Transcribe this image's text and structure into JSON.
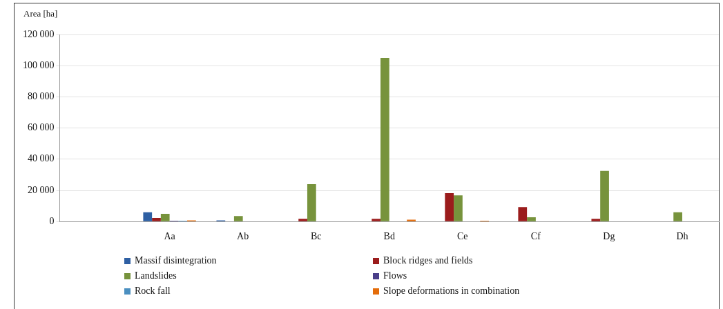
{
  "chart_data": {
    "type": "bar",
    "ylabel": "Area [ha]",
    "categories": [
      null,
      "Aa",
      "Ab",
      "Bc",
      "Bd",
      "Ce",
      "Cf",
      "Dg",
      "Dh"
    ],
    "series": [
      {
        "name": "Massif disintegration",
        "color": "#2e5fa3",
        "values": [
          0,
          6000,
          800,
          0,
          0,
          0,
          0,
          0,
          0
        ]
      },
      {
        "name": "Block ridges and fields",
        "color": "#9b1c1c",
        "values": [
          0,
          2300,
          0,
          1800,
          1800,
          18200,
          9300,
          1800,
          0
        ]
      },
      {
        "name": "Landslides",
        "color": "#77933c",
        "values": [
          0,
          5000,
          3500,
          24000,
          105000,
          16800,
          2700,
          32500,
          6000
        ]
      },
      {
        "name": "Flows",
        "color": "#4a3f8a",
        "values": [
          0,
          500,
          0,
          0,
          0,
          0,
          0,
          0,
          0
        ]
      },
      {
        "name": "Rock fall",
        "color": "#4a8fc0",
        "values": [
          0,
          500,
          0,
          0,
          0,
          0,
          0,
          0,
          0
        ]
      },
      {
        "name": "Slope deformations in combination",
        "color": "#e46c0a",
        "values": [
          0,
          800,
          0,
          0,
          1200,
          500,
          0,
          0,
          0
        ]
      }
    ],
    "ylim": [
      0,
      120000
    ],
    "yticks": [
      {
        "value": 0,
        "label": "0"
      },
      {
        "value": 20000,
        "label": "20 000"
      },
      {
        "value": 40000,
        "label": "40 000"
      },
      {
        "value": 60000,
        "label": "60 000"
      },
      {
        "value": 80000,
        "label": "80 000"
      },
      {
        "value": 100000,
        "label": "100 000"
      },
      {
        "value": 120000,
        "label": "120 000"
      }
    ],
    "grid": "y",
    "legend": "bottom"
  }
}
